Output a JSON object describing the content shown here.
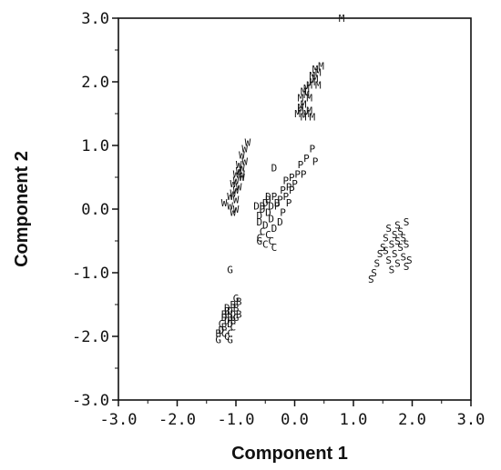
{
  "chart_data": {
    "type": "scatter",
    "title": "",
    "xlabel": "Component 1",
    "ylabel": "Component 2",
    "xlim": [
      -3.0,
      3.0
    ],
    "ylim": [
      -3.0,
      3.0
    ],
    "xticks": [
      "-3.0",
      "-2.0",
      "-1.0",
      "0.0",
      "1.0",
      "2.0",
      "3.0"
    ],
    "yticks": [
      "3.0",
      "2.0",
      "1.0",
      "0.0",
      "-1.0",
      "-2.0",
      "-3.0"
    ],
    "grid": false,
    "legend": "none",
    "marker_style": "letters",
    "series": [
      {
        "marker": "M",
        "points": [
          [
            0.8,
            3.0
          ],
          [
            0.45,
            2.25
          ],
          [
            0.4,
            2.15
          ],
          [
            0.35,
            2.2
          ],
          [
            0.3,
            2.1
          ],
          [
            0.3,
            2.0
          ],
          [
            0.25,
            1.95
          ],
          [
            0.2,
            1.9
          ],
          [
            0.2,
            1.8
          ],
          [
            0.15,
            1.85
          ],
          [
            0.1,
            1.75
          ],
          [
            0.15,
            1.65
          ],
          [
            0.1,
            1.55
          ],
          [
            0.05,
            1.5
          ],
          [
            0.2,
            1.5
          ],
          [
            0.25,
            1.55
          ],
          [
            0.3,
            1.45
          ],
          [
            0.15,
            1.45
          ],
          [
            0.1,
            1.6
          ],
          [
            0.25,
            1.75
          ],
          [
            0.35,
            2.05
          ],
          [
            0.4,
            1.95
          ]
        ]
      },
      {
        "marker": "W",
        "points": [
          [
            -0.8,
            1.05
          ],
          [
            -0.85,
            0.95
          ],
          [
            -0.9,
            0.85
          ],
          [
            -0.85,
            0.75
          ],
          [
            -0.9,
            0.65
          ],
          [
            -0.95,
            0.6
          ],
          [
            -1.0,
            0.55
          ],
          [
            -0.9,
            0.5
          ],
          [
            -1.0,
            0.45
          ],
          [
            -1.05,
            0.4
          ],
          [
            -0.95,
            0.35
          ],
          [
            -1.0,
            0.3
          ],
          [
            -1.05,
            0.25
          ],
          [
            -1.1,
            0.2
          ],
          [
            -1.0,
            0.15
          ],
          [
            -1.1,
            0.05
          ],
          [
            -1.05,
            -0.05
          ],
          [
            -1.2,
            0.1
          ],
          [
            -0.95,
            0.7
          ],
          [
            -0.9,
            0.55
          ],
          [
            -1.0,
            0.0
          ]
        ]
      },
      {
        "marker": "P",
        "points": [
          [
            0.3,
            0.95
          ],
          [
            0.35,
            0.75
          ],
          [
            0.2,
            0.8
          ],
          [
            0.1,
            0.7
          ],
          [
            0.05,
            0.55
          ],
          [
            -0.05,
            0.5
          ],
          [
            -0.15,
            0.45
          ],
          [
            -0.1,
            0.35
          ],
          [
            -0.2,
            0.3
          ],
          [
            -0.05,
            0.3
          ],
          [
            -0.15,
            0.2
          ],
          [
            -0.25,
            0.15
          ],
          [
            -0.3,
            0.05
          ],
          [
            -0.1,
            0.1
          ],
          [
            -0.2,
            -0.05
          ],
          [
            0.0,
            0.4
          ],
          [
            0.15,
            0.55
          ],
          [
            -0.35,
            0.2
          ]
        ]
      },
      {
        "marker": "D",
        "points": [
          [
            -0.35,
            0.65
          ],
          [
            -0.45,
            0.2
          ],
          [
            -0.5,
            0.1
          ],
          [
            -0.55,
            0.05
          ],
          [
            -0.45,
            -0.05
          ],
          [
            -0.6,
            -0.1
          ],
          [
            -0.4,
            -0.15
          ],
          [
            -0.5,
            -0.25
          ],
          [
            -0.35,
            -0.3
          ],
          [
            -0.55,
            0.0
          ],
          [
            -0.65,
            0.05
          ],
          [
            -0.3,
            0.1
          ],
          [
            -0.4,
            0.05
          ],
          [
            -0.6,
            -0.2
          ],
          [
            -0.25,
            -0.2
          ],
          [
            -0.45,
            0.15
          ],
          [
            -1.15,
            -1.55
          ],
          [
            -1.05,
            -1.65
          ],
          [
            -1.2,
            -1.7
          ],
          [
            -1.1,
            -1.8
          ],
          [
            -1.25,
            -1.9
          ],
          [
            -1.1,
            -1.6
          ],
          [
            -1.15,
            -1.75
          ]
        ]
      },
      {
        "marker": "C",
        "points": [
          [
            -0.4,
            -0.5
          ],
          [
            -0.5,
            -0.55
          ],
          [
            -0.45,
            -0.4
          ],
          [
            -0.55,
            -0.35
          ],
          [
            -0.35,
            -0.6
          ],
          [
            -0.6,
            -0.45
          ],
          [
            -1.2,
            -1.95
          ],
          [
            -1.15,
            -2.0
          ],
          [
            -1.05,
            -1.85
          ],
          [
            -1.25,
            -1.8
          ],
          [
            -1.1,
            -1.95
          ]
        ]
      },
      {
        "marker": "G",
        "points": [
          [
            -1.1,
            -0.95
          ],
          [
            -0.6,
            -0.5
          ],
          [
            -1.0,
            -1.4
          ],
          [
            -1.3,
            -2.05
          ],
          [
            -1.1,
            -2.05
          ],
          [
            -1.0,
            -1.7
          ]
        ]
      },
      {
        "marker": "B",
        "points": [
          [
            -0.95,
            -1.45
          ],
          [
            -1.05,
            -1.5
          ],
          [
            -1.0,
            -1.55
          ],
          [
            -1.2,
            -1.65
          ],
          [
            -1.1,
            -1.7
          ],
          [
            -1.2,
            -1.85
          ],
          [
            -1.05,
            -1.75
          ],
          [
            -1.15,
            -1.6
          ],
          [
            -0.95,
            -1.65
          ],
          [
            -1.3,
            -1.95
          ]
        ]
      },
      {
        "marker": "S",
        "points": [
          [
            1.6,
            -0.3
          ],
          [
            1.75,
            -0.25
          ],
          [
            1.9,
            -0.2
          ],
          [
            1.7,
            -0.4
          ],
          [
            1.85,
            -0.45
          ],
          [
            1.65,
            -0.55
          ],
          [
            1.8,
            -0.6
          ],
          [
            1.55,
            -0.65
          ],
          [
            1.9,
            -0.55
          ],
          [
            1.7,
            -0.7
          ],
          [
            1.85,
            -0.75
          ],
          [
            1.6,
            -0.8
          ],
          [
            1.75,
            -0.85
          ],
          [
            1.5,
            -0.6
          ],
          [
            1.45,
            -0.7
          ],
          [
            1.4,
            -0.85
          ],
          [
            1.35,
            -1.0
          ],
          [
            1.3,
            -1.1
          ],
          [
            1.95,
            -0.8
          ],
          [
            1.65,
            -0.95
          ],
          [
            1.9,
            -0.9
          ],
          [
            1.75,
            -0.5
          ],
          [
            1.8,
            -0.35
          ],
          [
            1.55,
            -0.45
          ]
        ]
      }
    ]
  }
}
